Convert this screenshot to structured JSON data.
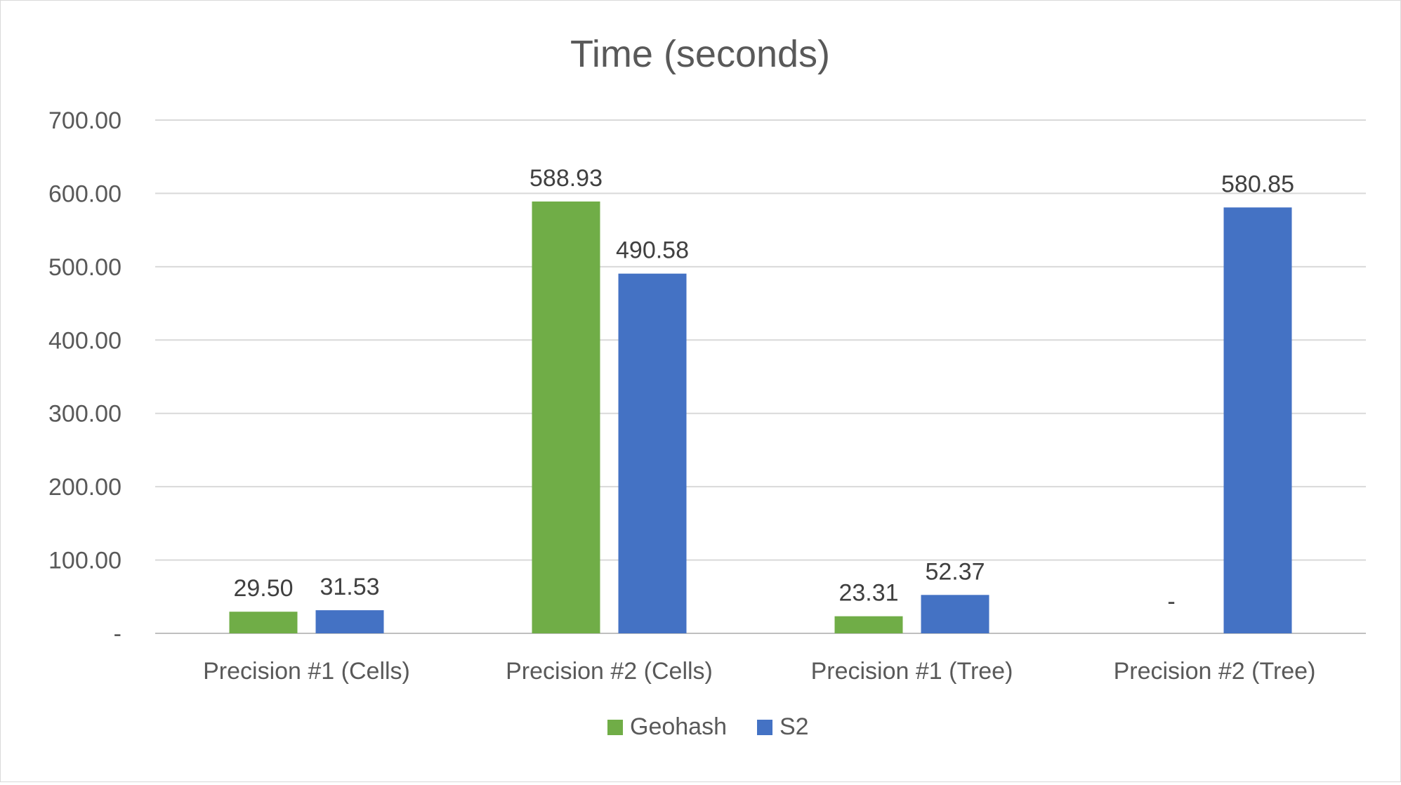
{
  "chart_data": {
    "type": "bar",
    "title": "Time (seconds)",
    "categories": [
      "Precision #1 (Cells)",
      "Precision #2 (Cells)",
      "Precision #1 (Tree)",
      "Precision #2 (Tree)"
    ],
    "series": [
      {
        "name": "Geohash",
        "color": "#70ad47",
        "values": [
          29.5,
          588.93,
          23.31,
          0
        ],
        "labels": [
          "29.50",
          "588.93",
          "23.31",
          "-"
        ]
      },
      {
        "name": "S2",
        "color": "#4472c4",
        "values": [
          31.53,
          490.58,
          52.37,
          580.85
        ],
        "labels": [
          "31.53",
          "490.58",
          "52.37",
          "580.85"
        ]
      }
    ],
    "yticks": [
      {
        "value": 0,
        "label": "-"
      },
      {
        "value": 100,
        "label": "100.00"
      },
      {
        "value": 200,
        "label": "200.00"
      },
      {
        "value": 300,
        "label": "300.00"
      },
      {
        "value": 400,
        "label": "400.00"
      },
      {
        "value": 500,
        "label": "500.00"
      },
      {
        "value": 600,
        "label": "600.00"
      },
      {
        "value": 700,
        "label": "700.00"
      }
    ],
    "ylim": [
      0,
      700
    ],
    "xlabel": "",
    "ylabel": "",
    "grid": true,
    "legend_position": "bottom"
  }
}
